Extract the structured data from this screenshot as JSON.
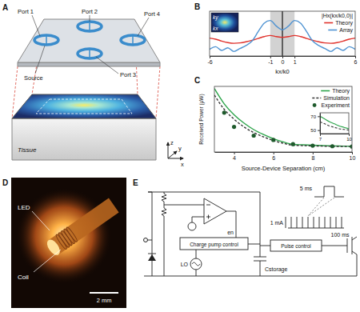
{
  "figure": {
    "panel_letters": [
      "A",
      "B",
      "C",
      "D",
      "E"
    ]
  },
  "panel_a": {
    "ports": [
      "Port 1",
      "Port 2",
      "Port 3",
      "Port 4"
    ],
    "source": "Source",
    "tissue": "Tissue",
    "axes": [
      "z",
      "y",
      "x"
    ]
  },
  "chart_data": [
    {
      "type": "line",
      "x_label": "kx/k0",
      "annotations": [
        "|Hx(kx/k0,0)|",
        "ky",
        "kx"
      ],
      "x": [
        -6,
        -5.5,
        -5,
        -4.5,
        -4,
        -3.5,
        -3,
        -2.5,
        -2,
        -1.5,
        -1,
        -0.5,
        0,
        0.5,
        1,
        1.5,
        2,
        2.5,
        3,
        3.5,
        4,
        4.5,
        5,
        5.5,
        6
      ],
      "series": [
        {
          "name": "Theory",
          "color": "#e0312b",
          "values": [
            0.48,
            0.45,
            0.4,
            0.36,
            0.34,
            0.35,
            0.38,
            0.42,
            0.47,
            0.52,
            0.55,
            0.52,
            0.5,
            0.52,
            0.55,
            0.52,
            0.47,
            0.42,
            0.38,
            0.35,
            0.34,
            0.36,
            0.4,
            0.45,
            0.48
          ]
        },
        {
          "name": "Array",
          "color": "#4f93d2",
          "values": [
            0.18,
            0.25,
            0.15,
            0.22,
            0.12,
            0.2,
            0.28,
            0.4,
            0.65,
            0.88,
            0.95,
            0.8,
            0.7,
            0.8,
            0.95,
            0.88,
            0.65,
            0.4,
            0.28,
            0.2,
            0.12,
            0.22,
            0.15,
            0.25,
            0.18
          ]
        }
      ],
      "xlim": [
        -6,
        6
      ],
      "xticks": [
        -6,
        -1,
        0,
        1,
        6
      ],
      "ylim": [
        0,
        1.2
      ],
      "tick_labels": "x",
      "legend": "top-right",
      "highlight": {
        "xlim": [
          -1,
          1
        ],
        "line_x": 0
      }
    },
    {
      "type": "line",
      "x_label": "Source-Device Separation (cm)",
      "y_label": "Received Power (μW)",
      "x": [
        3,
        3.5,
        4,
        4.5,
        5,
        5.5,
        6,
        6.5,
        7,
        7.5,
        8,
        8.5,
        9,
        9.5,
        10
      ],
      "series": [
        {
          "name": "Theory",
          "color": "#2ca44a",
          "values": [
            580,
            440,
            340,
            265,
            205,
            160,
            122,
            92,
            70,
            66,
            62,
            59,
            56,
            54,
            52
          ]
        },
        {
          "name": "Simulation",
          "color": "#333333",
          "line_style": "dashed",
          "values": [
            520,
            390,
            300,
            230,
            178,
            138,
            105,
            80,
            62,
            59,
            56,
            54,
            52,
            51,
            50
          ]
        },
        {
          "name": "Experiment",
          "type": "scatter",
          "color": "#1e5a2c",
          "marker": "circle",
          "x": [
            3.5,
            4,
            5,
            6,
            7,
            8,
            9,
            10
          ],
          "values": [
            360,
            230,
            150,
            110,
            72,
            58,
            53,
            50
          ]
        }
      ],
      "xlim": [
        3,
        10
      ],
      "xticks": [
        4,
        6,
        8,
        10
      ],
      "ylim": [
        0,
        600
      ],
      "tick_labels": "x",
      "legend": "top-right"
    },
    {
      "type": "line",
      "x": [
        7,
        7.5,
        8,
        8.5,
        9,
        9.5,
        10
      ],
      "series": [
        {
          "color": "#2ca44a",
          "values": [
            70,
            66,
            62,
            59,
            56,
            54,
            52
          ]
        },
        {
          "color": "#333333",
          "line_style": "dashed",
          "values": [
            62,
            59,
            56,
            54,
            52,
            51,
            50
          ]
        }
      ],
      "xlim": [
        7,
        10
      ],
      "xticks": [
        7,
        10
      ],
      "ylim": [
        45,
        75
      ],
      "yticks": [
        50,
        70
      ]
    }
  ],
  "panel_d": {
    "labels": [
      "LED",
      "Coil"
    ],
    "scale_bar": "2 mm"
  },
  "panel_e": {
    "en": "en",
    "charge_pump": "Charge pump control",
    "lo": "LO",
    "storage": "Cstorage",
    "pulse_control": "Pulse control",
    "pulse_width": "5 ms",
    "amplitude": "1 mA",
    "period": "100 ms"
  }
}
